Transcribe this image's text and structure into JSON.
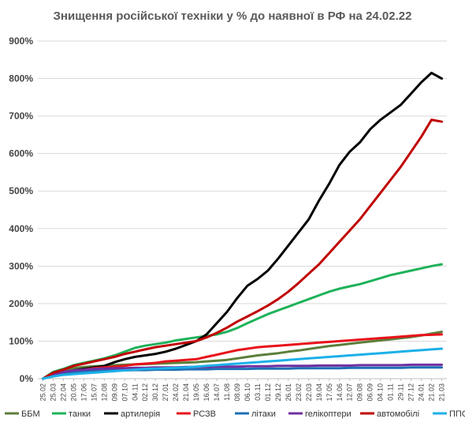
{
  "chart_data": {
    "type": "line",
    "title": "Знищення російської техніки у % до наявної в РФ на 24.02.22",
    "xlabel": "",
    "ylabel": "",
    "ylim": [
      0,
      900
    ],
    "y_ticks": [
      "0%",
      "100%",
      "200%",
      "300%",
      "400%",
      "500%",
      "600%",
      "700%",
      "800%",
      "900%"
    ],
    "x_ticks": [
      "25.02",
      "25.03",
      "22.04",
      "20.05",
      "17.06",
      "15.07",
      "12.08",
      "09.09",
      "07.10",
      "04.11",
      "02.12",
      "30.12",
      "27.01",
      "24.02",
      "21.04",
      "19.05",
      "16.06",
      "14.07",
      "11.08",
      "08.09",
      "06.10",
      "03.11",
      "01.12",
      "29.12",
      "26.01",
      "23.02",
      "22.03",
      "19.04",
      "17.05",
      "14.06",
      "12.07",
      "09.08",
      "06.09",
      "04.10",
      "01.11",
      "29.11",
      "27.12",
      "24.01",
      "21.02",
      "21.03"
    ],
    "grid": true,
    "legend_position": "bottom",
    "series": [
      {
        "name": "ББМ",
        "color": "#5b7f3a",
        "values": [
          0,
          15,
          22,
          28,
          31,
          33,
          34,
          36,
          37,
          38,
          39,
          40,
          41,
          42,
          43,
          44,
          46,
          48,
          50,
          54,
          58,
          62,
          65,
          68,
          72,
          75,
          79,
          83,
          87,
          90,
          93,
          96,
          99,
          102,
          105,
          108,
          111,
          115,
          120,
          125
        ]
      },
      {
        "name": "танки",
        "color": "#1fb25a",
        "values": [
          0,
          18,
          26,
          36,
          42,
          48,
          54,
          62,
          72,
          82,
          88,
          92,
          96,
          102,
          106,
          110,
          114,
          118,
          125,
          135,
          148,
          160,
          172,
          182,
          192,
          202,
          212,
          222,
          232,
          240,
          246,
          252,
          260,
          268,
          276,
          282,
          288,
          294,
          300,
          305
        ]
      },
      {
        "name": "артилерія",
        "color": "#000000",
        "values": [
          0,
          12,
          16,
          22,
          26,
          30,
          34,
          44,
          52,
          58,
          62,
          66,
          72,
          80,
          90,
          100,
          118,
          148,
          178,
          215,
          248,
          266,
          288,
          320,
          355,
          390,
          425,
          475,
          520,
          570,
          605,
          630,
          665,
          690,
          710,
          730,
          760,
          790,
          815,
          800
        ]
      },
      {
        "name": "РСЗВ",
        "color": "#e8121b",
        "values": [
          0,
          10,
          14,
          20,
          24,
          28,
          30,
          32,
          34,
          38,
          40,
          42,
          46,
          48,
          50,
          52,
          58,
          64,
          70,
          76,
          80,
          84,
          86,
          88,
          90,
          92,
          94,
          96,
          98,
          100,
          102,
          104,
          106,
          108,
          110,
          112,
          114,
          116,
          117,
          118
        ]
      },
      {
        "name": "літаки",
        "color": "#1f6fb5",
        "values": [
          0,
          10,
          14,
          17,
          19,
          20,
          21,
          22,
          22,
          23,
          23,
          24,
          24,
          24,
          25,
          25,
          25,
          26,
          26,
          26,
          26,
          27,
          27,
          27,
          27,
          28,
          28,
          28,
          28,
          28,
          29,
          29,
          29,
          29,
          29,
          29,
          30,
          30,
          30,
          30
        ]
      },
      {
        "name": "гелікоптери",
        "color": "#7030a0",
        "values": [
          0,
          12,
          18,
          22,
          24,
          26,
          27,
          28,
          28,
          29,
          29,
          30,
          30,
          30,
          31,
          31,
          31,
          32,
          32,
          32,
          33,
          33,
          33,
          34,
          34,
          34,
          34,
          35,
          35,
          35,
          35,
          36,
          36,
          36,
          36,
          36,
          37,
          37,
          37,
          37
        ]
      },
      {
        "name": "автомобілі",
        "color": "#c00000",
        "values": [
          0,
          16,
          24,
          34,
          40,
          46,
          52,
          58,
          66,
          72,
          78,
          84,
          88,
          92,
          96,
          100,
          110,
          122,
          136,
          152,
          166,
          180,
          195,
          212,
          232,
          255,
          280,
          305,
          335,
          365,
          395,
          425,
          460,
          495,
          530,
          565,
          605,
          645,
          690,
          685
        ]
      },
      {
        "name": "ППО",
        "color": "#1cb0e8",
        "values": [
          0,
          6,
          10,
          12,
          14,
          16,
          18,
          20,
          22,
          24,
          26,
          27,
          28,
          29,
          30,
          32,
          34,
          36,
          38,
          40,
          42,
          44,
          46,
          48,
          50,
          52,
          54,
          56,
          58,
          60,
          62,
          64,
          66,
          68,
          70,
          72,
          74,
          76,
          78,
          80
        ]
      }
    ]
  }
}
